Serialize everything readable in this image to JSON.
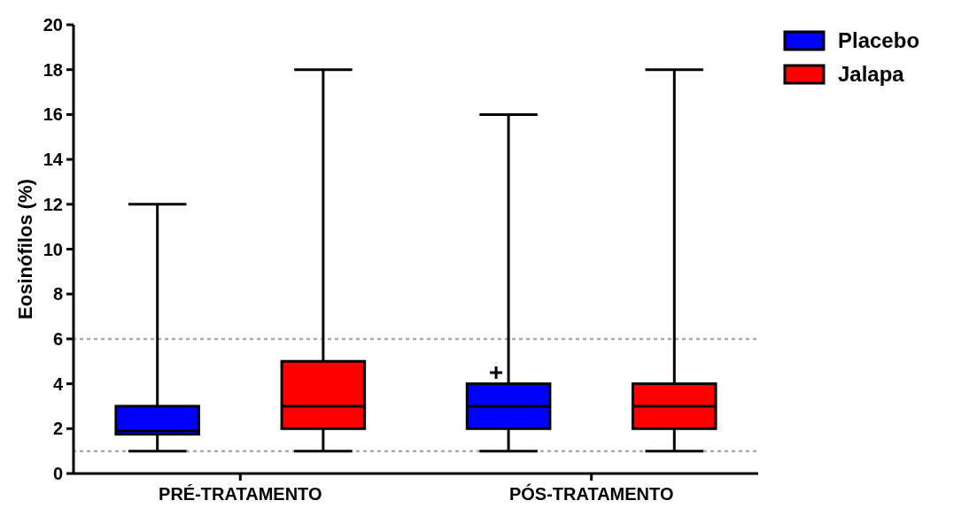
{
  "chart_data": {
    "type": "box",
    "ylabel": "Eosinófilos (%)",
    "categories": [
      "PRÉ-TRATAMENTO",
      "PÓS-TRATAMENTO"
    ],
    "series": [
      {
        "name": "Placebo",
        "color": "#0000ff",
        "boxes": [
          {
            "low": 1,
            "q1": 1.75,
            "median": 1.9,
            "q3": 3,
            "high": 12
          },
          {
            "low": 1,
            "q1": 2,
            "median": 3,
            "q3": 4,
            "high": 16,
            "mean": 4.5
          }
        ]
      },
      {
        "name": "Jalapa",
        "color": "#ff0000",
        "boxes": [
          {
            "low": 1,
            "q1": 2,
            "median": 3,
            "q3": 5,
            "high": 18
          },
          {
            "low": 1,
            "q1": 2,
            "median": 3,
            "q3": 4,
            "high": 18
          }
        ]
      }
    ],
    "ylim": [
      0,
      20
    ],
    "yticks": [
      0,
      2,
      4,
      6,
      8,
      10,
      12,
      14,
      16,
      18,
      20
    ],
    "ref_lines": [
      {
        "axis": "y",
        "value": 6,
        "color": "#aaaaaa",
        "line_style": "dotted"
      },
      {
        "axis": "y",
        "value": 1,
        "color": "#aaaaaa",
        "line_style": "dotted"
      }
    ],
    "grid": false,
    "legend": "top right"
  }
}
